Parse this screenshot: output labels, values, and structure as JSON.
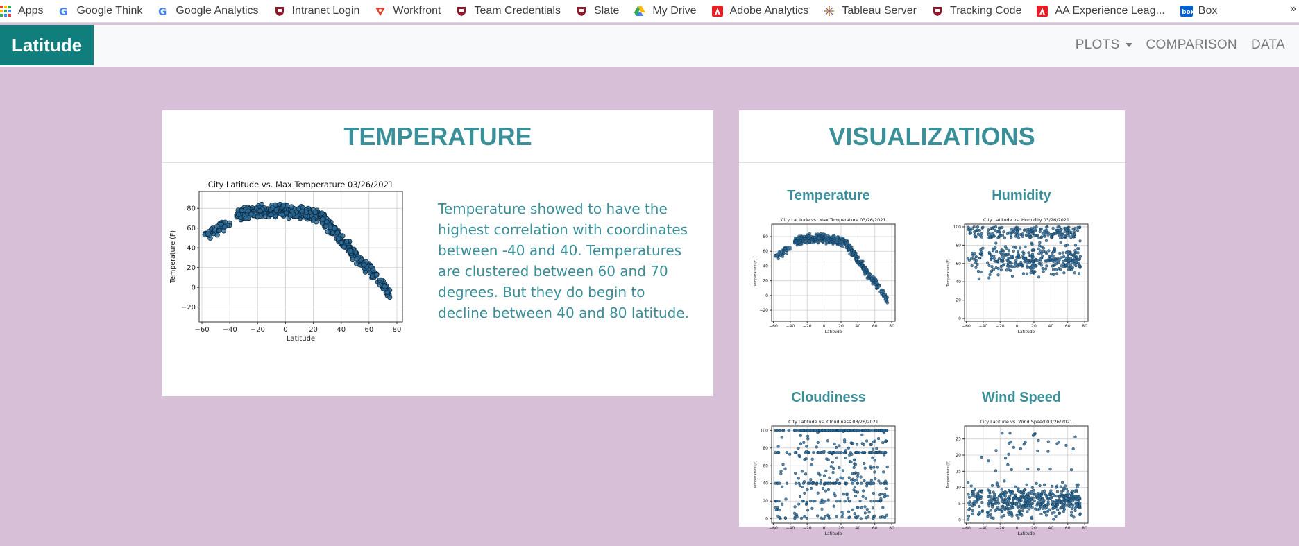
{
  "bookmarks": [
    {
      "label": "Apps",
      "icon": "apps-grid-icon"
    },
    {
      "label": "Google Think",
      "icon": "google-icon"
    },
    {
      "label": "Google Analytics",
      "icon": "google-icon"
    },
    {
      "label": "Intranet Login",
      "icon": "shield-crest-icon"
    },
    {
      "label": "Workfront",
      "icon": "workfront-icon"
    },
    {
      "label": "Team Credentials",
      "icon": "shield-crest-icon"
    },
    {
      "label": "Slate",
      "icon": "shield-crest-icon"
    },
    {
      "label": "My Drive",
      "icon": "google-drive-icon"
    },
    {
      "label": "Adobe Analytics",
      "icon": "adobe-icon"
    },
    {
      "label": "Tableau Server",
      "icon": "tableau-icon"
    },
    {
      "label": "Tracking Code",
      "icon": "shield-crest-icon"
    },
    {
      "label": "AA Experience Leag...",
      "icon": "adobe-icon"
    },
    {
      "label": "Box",
      "icon": "box-icon"
    }
  ],
  "bookmarks_more": "»",
  "navbar": {
    "brand": "Latitude",
    "links": [
      {
        "label": "PLOTS",
        "dropdown": true
      },
      {
        "label": "COMPARISON"
      },
      {
        "label": "DATA"
      }
    ]
  },
  "temperature_card": {
    "heading": "TEMPERATURE",
    "description": "Temperature showed to have the highest correlation with coordinates between -40 and 40. Temperatures are clustered between 60 and 70 degrees. But they do begin to decline between 40 and 80 latitude."
  },
  "visualizations_card": {
    "heading": "VISUALIZATIONS",
    "items": [
      {
        "label": "Temperature"
      },
      {
        "label": "Humidity"
      },
      {
        "label": "Cloudiness"
      },
      {
        "label": "Wind Speed"
      }
    ]
  },
  "chart_data": [
    {
      "type": "scatter",
      "title": "City Latitude vs. Max Temperature 03/26/2021",
      "xlabel": "Latitude",
      "ylabel": "Temperature (F)",
      "xlim": [
        -62,
        84
      ],
      "ylim": [
        -35,
        97
      ],
      "xticks": [
        -60,
        -40,
        -20,
        0,
        20,
        40,
        60,
        80
      ],
      "yticks": [
        -20,
        0,
        20,
        40,
        60,
        80
      ],
      "grid": true,
      "marker_color": "#2b6a9a",
      "shape": "temperature"
    },
    {
      "type": "scatter",
      "title": "City Latitude vs. Humidity 03/26/2021",
      "xlabel": "Latitude",
      "ylabel": "Temperature (F)",
      "xlim": [
        -62,
        84
      ],
      "ylim": [
        -3,
        103
      ],
      "xticks": [
        -60,
        -40,
        -20,
        0,
        20,
        40,
        60,
        80
      ],
      "yticks": [
        0,
        20,
        40,
        60,
        80,
        100
      ],
      "grid": true,
      "marker_color": "#2b6a9a",
      "shape": "humidity"
    },
    {
      "type": "scatter",
      "title": "City Latitude vs. Cloudiness 03/26/2021",
      "xlabel": "Latitude",
      "ylabel": "Temperature (F)",
      "xlim": [
        -62,
        84
      ],
      "ylim": [
        -5,
        105
      ],
      "xticks": [
        -60,
        -40,
        -20,
        0,
        20,
        40,
        60,
        80
      ],
      "yticks": [
        0,
        20,
        40,
        60,
        80,
        100
      ],
      "grid": true,
      "marker_color": "#2b6a9a",
      "shape": "cloudiness"
    },
    {
      "type": "scatter",
      "title": "City Latitude vs. Wind Speed 03/26/2021",
      "xlabel": "Latitude",
      "ylabel": "Temperature (F)",
      "xlim": [
        -62,
        84
      ],
      "ylim": [
        -1,
        29
      ],
      "xticks": [
        -60,
        -40,
        -20,
        0,
        20,
        40,
        60,
        80
      ],
      "yticks": [
        0,
        5,
        10,
        15,
        20,
        25
      ],
      "grid": true,
      "marker_color": "#2b6a9a",
      "shape": "wind"
    }
  ]
}
